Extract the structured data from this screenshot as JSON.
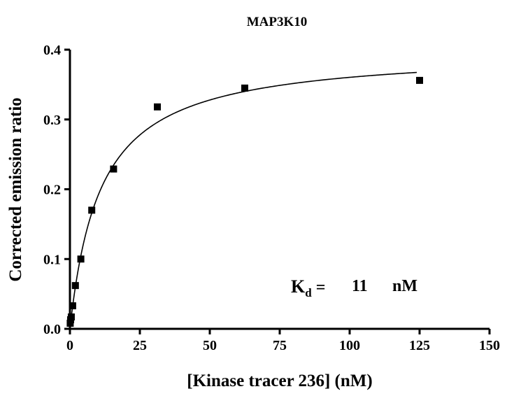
{
  "chart_data": {
    "type": "scatter",
    "title": "MAP3K10",
    "xlabel": "[Kinase tracer 236] (nM)",
    "ylabel": "Corrected emission ratio",
    "xlim": [
      0,
      150
    ],
    "ylim": [
      0.0,
      0.4
    ],
    "x_ticks": [
      "0",
      "25",
      "50",
      "75",
      "100",
      "125",
      "150"
    ],
    "y_ticks": [
      "0.0",
      "0.1",
      "0.2",
      "0.3",
      "0.4"
    ],
    "grid": false,
    "series": [
      {
        "marker": "square",
        "color": "#000000",
        "x": [
          0.1,
          0.24,
          0.49,
          0.98,
          1.95,
          3.9,
          7.8,
          15.6,
          31.25,
          62.5,
          125
        ],
        "y": [
          0.008,
          0.013,
          0.017,
          0.033,
          0.062,
          0.1,
          0.17,
          0.229,
          0.318,
          0.345,
          0.356
        ]
      }
    ],
    "fit_curve": {
      "model": "one-site binding",
      "bmax": 0.4,
      "kd": 11,
      "x_range": [
        0,
        124
      ]
    },
    "annotation": {
      "k": "K",
      "subscript": "d",
      "equals": " =",
      "value": "11",
      "unit": "nM"
    }
  }
}
